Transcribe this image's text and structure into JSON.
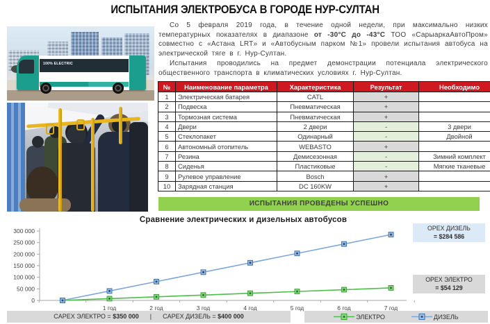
{
  "header": {
    "title": "ИСПЫТАНИЯ ЭЛЕКТРОБУСА В ГОРОДЕ НУР-СУЛТАН"
  },
  "photos": {
    "bus_label": "100% ELECTRIC"
  },
  "intro": {
    "p1_pre": "Со 5 февраля 2019 года, в течение одной недели, при максимально низких температурных показателях в диапазоне ",
    "p1_bold": "от -30°С до -43°С",
    "p1_post": " ТОО «СарыаркаАвтоПром» совместно с «Астана LRT» и «Автобусным парком №1» провели испытания автобуса на электрической тяге в г. Нур-Султан.",
    "p2": "Испытания проводились на предмет демонстрации потенциала электрического общественного транспорта в климатических условиях г. Нур-Султан."
  },
  "table": {
    "headers": [
      "№",
      "Наименование параметра",
      "Характеристика",
      "Результат",
      "Необходимо"
    ],
    "rows": [
      {
        "num": "1",
        "name": "Электрическая батарея",
        "spec": "CATL",
        "result": "+",
        "needed": ""
      },
      {
        "num": "2",
        "name": "Подвеска",
        "spec": "Пневматическая",
        "result": "+",
        "needed": ""
      },
      {
        "num": "3",
        "name": "Тормозная система",
        "spec": "Пневматическая",
        "result": "+",
        "needed": ""
      },
      {
        "num": "4",
        "name": "Двери",
        "spec": "2 двери",
        "result": "-",
        "needed": "3 двери"
      },
      {
        "num": "5",
        "name": "Стеклопакет",
        "spec": "Одинарный",
        "result": "-",
        "needed": "Двойной"
      },
      {
        "num": "6",
        "name": "Автономный отопитель",
        "spec": "WEBASTO",
        "result": "+",
        "needed": ""
      },
      {
        "num": "7",
        "name": "Резина",
        "spec": "Демисезонная",
        "result": "-",
        "needed": "Зимний комплект"
      },
      {
        "num": "8",
        "name": "Сиденья",
        "spec": "Пластиковые",
        "result": "-",
        "needed": "Мягкие тканевые"
      },
      {
        "num": "9",
        "name": "Рулевое управление",
        "spec": "Bosch",
        "result": "+",
        "needed": ""
      },
      {
        "num": "10",
        "name": "Зарядная станция",
        "spec": "DC 160KW",
        "result": "+",
        "needed": ""
      }
    ]
  },
  "banner": "ИСПЫТАНИЯ ПРОВЕДЕНЫ УСПЕШНО",
  "colors": {
    "header_red": "#CF1920",
    "banner_green": "#92D050",
    "result_plus_bg": "#D9D9D9",
    "result_minus_bg": "#E3EFDA",
    "electro_green": "#4DBE48",
    "diesel_blue": "#7DA7D9"
  },
  "chart_data": {
    "type": "line",
    "title": "Сравнение электрических и дизельных автобусов",
    "x_labels": [
      "",
      "1 год",
      "2 год",
      "3 год",
      "4 год",
      "5 год",
      "6 год",
      "7 год"
    ],
    "y_ticks": [
      "0",
      "50 000",
      "100 000",
      "150 000",
      "200 000",
      "250 000",
      "300 000"
    ],
    "ylim": [
      0,
      300000
    ],
    "grid": false,
    "legend_position": "bottom-right",
    "series": [
      {
        "name": "ЭЛЕКТРО",
        "color": "#4DBE48",
        "marker": {
          "fill": "#8FD989",
          "stroke": "#3FA33A",
          "core": "#1F7A1F"
        },
        "values": [
          0,
          7733,
          15465,
          23198,
          30931,
          38664,
          46396,
          54129
        ]
      },
      {
        "name": "ДИЗЕЛЬ",
        "color": "#7DA7D9",
        "marker": {
          "fill": "#A7C4E8",
          "stroke": "#4472A8",
          "core": "#24477C"
        },
        "values": [
          0,
          40655,
          81310,
          121965,
          162621,
          203276,
          243931,
          284586
        ]
      }
    ],
    "annotations": [
      {
        "label": "OPEX ДИЗЕЛЬ",
        "value": "= $284 586",
        "bg": "#DCE9F6"
      },
      {
        "label": "OPEX ЭЛЕКТРО",
        "value": "= $54 129",
        "bg": "#D9D9D9"
      }
    ],
    "footer": {
      "capex_electro_label": "CAPEX ЭЛЕКТРО = ",
      "capex_electro_value": "$350 000",
      "separator": "|",
      "capex_diesel_label": "CAPEX ДИЗЕЛЬ = ",
      "capex_diesel_value": "$400 000"
    }
  }
}
